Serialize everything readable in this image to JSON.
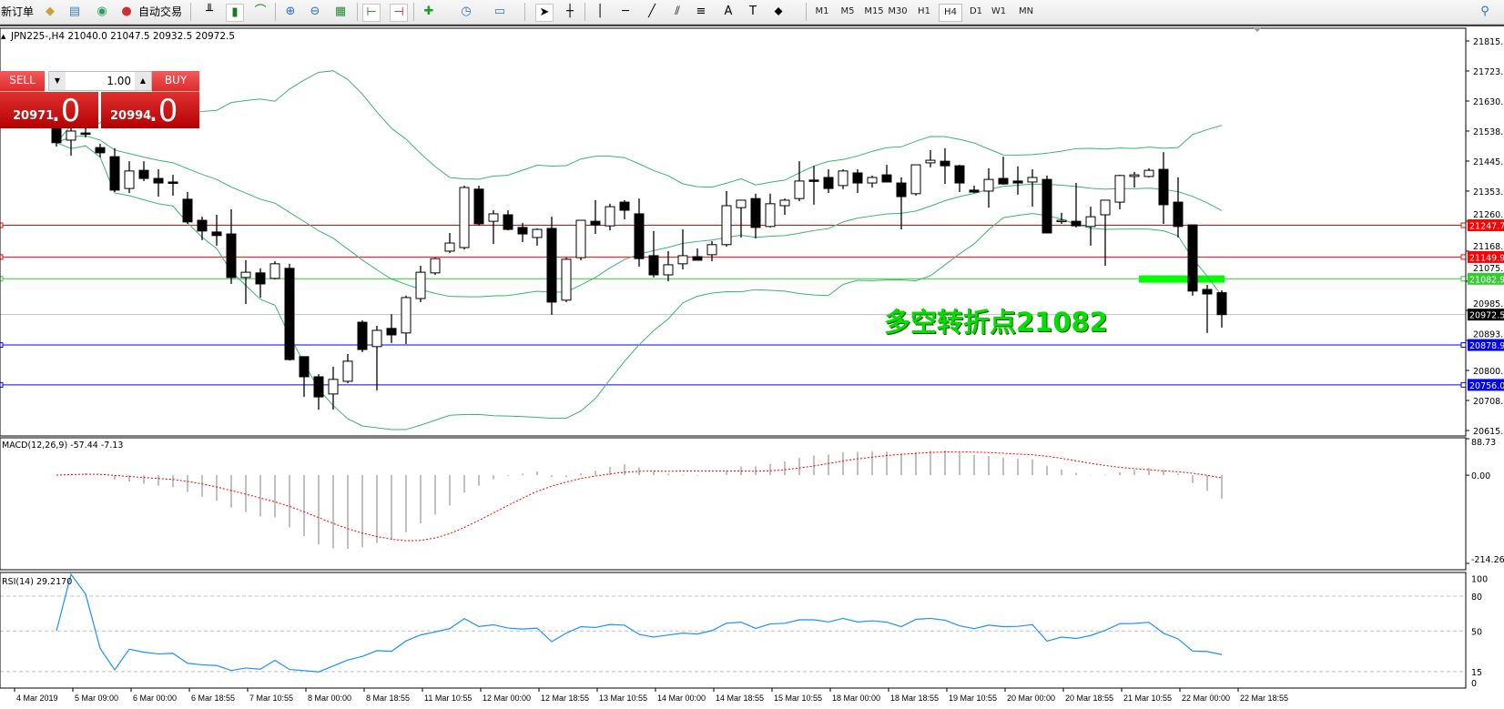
{
  "toolbar": {
    "new_order": "新订单",
    "auto_trading": "自动交易",
    "icons": [
      "market-watch-icon",
      "data-window-icon",
      "signal-icon",
      "auto-trading-icon",
      "bar-chart-icon",
      "candlestick-icon",
      "line-chart-icon",
      "zoom-in-icon",
      "zoom-out-icon",
      "tile-windows-icon",
      "chart-shift-icon",
      "autoscroll-icon",
      "new-chart-icon",
      "periods-icon",
      "indicators-icon",
      "cursor-icon",
      "crosshair-icon",
      "vertical-line-icon",
      "horizontal-line-icon",
      "trendline-icon",
      "equidistant-channel-icon",
      "fibonacci-icon",
      "text-icon",
      "text-label-icon",
      "shapes-icon",
      "search-icon"
    ],
    "timeframes": [
      "M1",
      "M5",
      "M15",
      "M30",
      "H1",
      "H4",
      "D1",
      "W1",
      "MN"
    ],
    "active_timeframe": "H4"
  },
  "chart_header": "JPN225-,H4  21040.0 21047.5 20932.5 20972.5",
  "one_click": {
    "sell_label": "SELL",
    "buy_label": "BUY",
    "lot": "1.00",
    "sell_main": "20971",
    "sell_frac": ".0",
    "buy_main": "20994",
    "buy_frac": ".0"
  },
  "annotation": "多空转折点21082",
  "colors": {
    "bull_fill": "#ffffff",
    "bear_fill": "#000000",
    "band": "#3cb371",
    "macd_hist": "#c0c0c0",
    "macd_signal": "#ff0000",
    "rsi": "#1e90ff",
    "annotation": "#00e000"
  },
  "chart_data": {
    "type": "candlestick",
    "symbol": "JPN225-",
    "timeframe": "H4",
    "ylim": [
      20615.5,
      21815.5
    ],
    "price_ticks": [
      "21815.5",
      "21723.0",
      "21630.5",
      "21538.0",
      "21445.5",
      "21353.0",
      "21260.5",
      "21168.0",
      "21075.5",
      "20985.5",
      "20893.0",
      "20800.5",
      "20708.0",
      "20615.5"
    ],
    "ohlc": [
      [
        21611,
        21616,
        21490,
        21502
      ],
      [
        21510,
        21574,
        21462,
        21538
      ],
      [
        21532,
        21555,
        21518,
        21530
      ],
      [
        21487,
        21499,
        21457,
        21471
      ],
      [
        21459,
        21485,
        21350,
        21356
      ],
      [
        21361,
        21445,
        21347,
        21415
      ],
      [
        21417,
        21445,
        21384,
        21392
      ],
      [
        21392,
        21420,
        21336,
        21378
      ],
      [
        21381,
        21403,
        21339,
        21380
      ],
      [
        21328,
        21350,
        21252,
        21258
      ],
      [
        21263,
        21274,
        21202,
        21230
      ],
      [
        21227,
        21280,
        21185,
        21216
      ],
      [
        21221,
        21297,
        21067,
        21087
      ],
      [
        21087,
        21140,
        21005,
        21103
      ],
      [
        21101,
        21115,
        21025,
        21067
      ],
      [
        21084,
        21137,
        21081,
        21129
      ],
      [
        21115,
        21129,
        20831,
        20834
      ],
      [
        20843,
        20843,
        20719,
        20781
      ],
      [
        20781,
        20789,
        20680,
        20719
      ],
      [
        20728,
        20812,
        20680,
        20773
      ],
      [
        20767,
        20851,
        20761,
        20829
      ],
      [
        20949,
        20955,
        20857,
        20865
      ],
      [
        20874,
        20938,
        20739,
        20924
      ],
      [
        20930,
        20974,
        20885,
        20910
      ],
      [
        20916,
        21031,
        20882,
        21025
      ],
      [
        21022,
        21123,
        21011,
        21103
      ],
      [
        21101,
        21148,
        21095,
        21145
      ],
      [
        21168,
        21224,
        21162,
        21193
      ],
      [
        21179,
        21370,
        21173,
        21364
      ],
      [
        21359,
        21370,
        21246,
        21252
      ],
      [
        21260,
        21294,
        21190,
        21283
      ],
      [
        21280,
        21294,
        21232,
        21235
      ],
      [
        21241,
        21255,
        21196,
        21221
      ],
      [
        21210,
        21238,
        21185,
        21235
      ],
      [
        21238,
        21274,
        20972,
        21011
      ],
      [
        21017,
        21148,
        21011,
        21143
      ],
      [
        21148,
        21263,
        21140,
        21263
      ],
      [
        21260,
        21325,
        21221,
        21249
      ],
      [
        21246,
        21314,
        21232,
        21305
      ],
      [
        21319,
        21325,
        21266,
        21294
      ],
      [
        21283,
        21330,
        21120,
        21145
      ],
      [
        21154,
        21230,
        21087,
        21095
      ],
      [
        21095,
        21168,
        21075,
        21126
      ],
      [
        21129,
        21235,
        21112,
        21154
      ],
      [
        21151,
        21176,
        21140,
        21140
      ],
      [
        21157,
        21199,
        21137,
        21188
      ],
      [
        21188,
        21353,
        21182,
        21308
      ],
      [
        21302,
        21325,
        21210,
        21325
      ],
      [
        21330,
        21345,
        21207,
        21241
      ],
      [
        21244,
        21345,
        21241,
        21314
      ],
      [
        21308,
        21330,
        21280,
        21325
      ],
      [
        21330,
        21445,
        21322,
        21384
      ],
      [
        21387,
        21431,
        21311,
        21384
      ],
      [
        21395,
        21420,
        21347,
        21361
      ],
      [
        21370,
        21420,
        21359,
        21415
      ],
      [
        21409,
        21420,
        21347,
        21378
      ],
      [
        21378,
        21401,
        21364,
        21395
      ],
      [
        21403,
        21434,
        21381,
        21381
      ],
      [
        21378,
        21395,
        21235,
        21336
      ],
      [
        21345,
        21434,
        21339,
        21434
      ],
      [
        21440,
        21479,
        21426,
        21448
      ],
      [
        21445,
        21485,
        21375,
        21431
      ],
      [
        21431,
        21434,
        21350,
        21378
      ],
      [
        21356,
        21370,
        21347,
        21350
      ],
      [
        21353,
        21423,
        21302,
        21389
      ],
      [
        21392,
        21459,
        21373,
        21375
      ],
      [
        21384,
        21429,
        21342,
        21378
      ],
      [
        21381,
        21420,
        21305,
        21395
      ],
      [
        21389,
        21401,
        21224,
        21224
      ],
      [
        21263,
        21286,
        21252,
        21263
      ],
      [
        21260,
        21378,
        21241,
        21246
      ],
      [
        21244,
        21305,
        21185,
        21274
      ],
      [
        21280,
        21325,
        21123,
        21325
      ],
      [
        21319,
        21403,
        21297,
        21401
      ],
      [
        21398,
        21412,
        21364,
        21403
      ],
      [
        21398,
        21423,
        21395,
        21417
      ],
      [
        21420,
        21473,
        21252,
        21311
      ],
      [
        21319,
        21395,
        21210,
        21244
      ],
      [
        21249,
        21249,
        21031,
        21045
      ],
      [
        21050,
        21064,
        20916,
        21036
      ],
      [
        21040.0,
        21047.5,
        20932.5,
        20972.5
      ]
    ],
    "levels": [
      {
        "value": 21247.7,
        "label": "21247.7",
        "color": "#ff0000"
      },
      {
        "value": 21149.9,
        "label": "21149.9",
        "color": "#ff0000"
      },
      {
        "value": 21082.9,
        "label": "21082.9",
        "color": "#32cd32"
      },
      {
        "value": 20972.5,
        "label": "20972.5",
        "color": "#000000",
        "line_color": "#c0c0c0"
      },
      {
        "value": 20878.9,
        "label": "20878.9",
        "color": "#0000ff"
      },
      {
        "value": 20756.0,
        "label": "20756.0",
        "color": "#0000ff"
      }
    ],
    "pivot_marker": 21082,
    "indicators": {
      "bollinger": {
        "period": 20,
        "deviation": 2
      },
      "macd": {
        "label": "MACD(12,26,9) -57.44 -7.13",
        "ticks": [
          "88.73",
          "0.00",
          "-214.26"
        ],
        "ylim": [
          -214.26,
          88.73
        ]
      },
      "rsi": {
        "label": "RSI(14) 29.2170",
        "ticks": [
          "100",
          "80",
          "50",
          "15",
          "0"
        ],
        "levels": [
          80,
          50,
          15
        ]
      }
    },
    "time_labels": [
      "4 Mar 2019",
      "5 Mar 09:00",
      "6 Mar 00:00",
      "6 Mar 18:55",
      "7 Mar 10:55",
      "8 Mar 00:00",
      "8 Mar 18:55",
      "11 Mar 10:55",
      "12 Mar 00:00",
      "12 Mar 18:55",
      "13 Mar 10:55",
      "14 Mar 00:00",
      "14 Mar 18:55",
      "15 Mar 10:55",
      "18 Mar 00:00",
      "18 Mar 18:55",
      "19 Mar 10:55",
      "20 Mar 00:00",
      "20 Mar 18:55",
      "21 Mar 10:55",
      "22 Mar 00:00",
      "22 Mar 18:55"
    ]
  }
}
